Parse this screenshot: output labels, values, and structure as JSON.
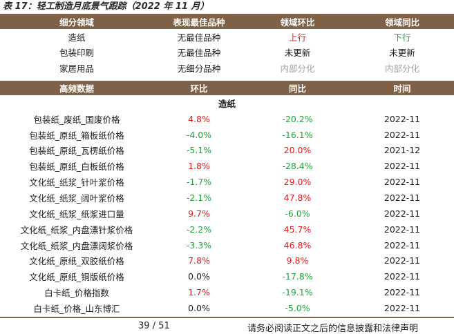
{
  "caption": "表 17：轻工制造月底景气跟踪（2022 年 11 月）",
  "top_table": {
    "headers": [
      "细分领域",
      "表现最佳品种",
      "领域环比",
      "领域同比"
    ],
    "rows": [
      {
        "cells": [
          "造纸",
          "无最佳品种",
          "上行",
          "下行"
        ],
        "colors": [
          "black",
          "black",
          "red",
          "green"
        ]
      },
      {
        "cells": [
          "包装印刷",
          "无最佳品种",
          "未更新",
          "未更新"
        ],
        "colors": [
          "black",
          "black",
          "black",
          "black"
        ]
      },
      {
        "cells": [
          "家居用品",
          "无细分品种",
          "内部分化",
          "内部分化"
        ],
        "colors": [
          "black",
          "black",
          "gray",
          "gray"
        ]
      }
    ]
  },
  "hf_table": {
    "headers": [
      "高频数据",
      "环比",
      "同比",
      "时间"
    ],
    "section": "造纸",
    "rows": [
      {
        "name": "包装纸_废纸_国废价格",
        "mom": "4.8%",
        "mom_c": "red",
        "yoy": "-20.2%",
        "yoy_c": "green",
        "time": "2022-11"
      },
      {
        "name": "包装纸_原纸_箱板纸价格",
        "mom": "-4.0%",
        "mom_c": "green",
        "yoy": "-16.1%",
        "yoy_c": "green",
        "time": "2022-11"
      },
      {
        "name": "包装纸_原纸_瓦楞纸价格",
        "mom": "-5.1%",
        "mom_c": "green",
        "yoy": "20.0%",
        "yoy_c": "red",
        "time": "2021-12"
      },
      {
        "name": "包装纸_原纸_白板纸价格",
        "mom": "1.8%",
        "mom_c": "red",
        "yoy": "-28.4%",
        "yoy_c": "green",
        "time": "2022-11"
      },
      {
        "name": "文化纸_纸浆_针叶浆价格",
        "mom": "-1.7%",
        "mom_c": "green",
        "yoy": "29.0%",
        "yoy_c": "red",
        "time": "2022-11"
      },
      {
        "name": "文化纸_纸浆_阔叶浆价格",
        "mom": "-2.1%",
        "mom_c": "green",
        "yoy": "47.8%",
        "yoy_c": "red",
        "time": "2022-11"
      },
      {
        "name": "文化纸_纸浆_纸浆进口量",
        "mom": "9.7%",
        "mom_c": "red",
        "yoy": "-6.0%",
        "yoy_c": "green",
        "time": "2022-11"
      },
      {
        "name": "文化纸_纸浆_内盘漂针浆价格",
        "mom": "-2.2%",
        "mom_c": "green",
        "yoy": "45.7%",
        "yoy_c": "red",
        "time": "2022-11"
      },
      {
        "name": "文化纸_纸浆_内盘漂阔浆价格",
        "mom": "-3.3%",
        "mom_c": "green",
        "yoy": "46.8%",
        "yoy_c": "red",
        "time": "2022-11"
      },
      {
        "name": "文化纸_原纸_双胶纸价格",
        "mom": "7.8%",
        "mom_c": "red",
        "yoy": "9.8%",
        "yoy_c": "red",
        "time": "2022-11"
      },
      {
        "name": "文化纸_原纸_铜版纸价格",
        "mom": "0.0%",
        "mom_c": "black",
        "yoy": "-17.8%",
        "yoy_c": "green",
        "time": "2022-11"
      },
      {
        "name": "白卡纸_价格指数",
        "mom": "1.7%",
        "mom_c": "red",
        "yoy": "-19.1%",
        "yoy_c": "green",
        "time": "2022-11"
      },
      {
        "name": "白卡纸_价格_山东博汇",
        "mom": "0.0%",
        "mom_c": "black",
        "yoy": "-5.0%",
        "yoy_c": "green",
        "time": "2022-11"
      }
    ]
  },
  "footer": {
    "page": "39 / 51",
    "disclaimer": "请务必阅读正文之后的信息披露和法律声明"
  }
}
